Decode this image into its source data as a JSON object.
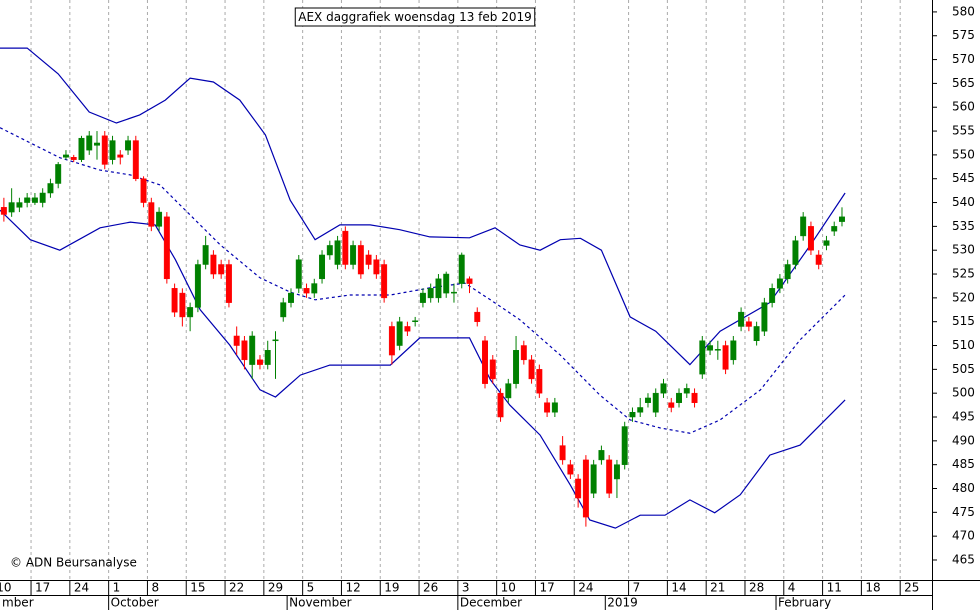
{
  "chart_data": {
    "type": "candlestick",
    "title": "AEX daggrafiek woensdag 13 feb 2019",
    "credit": "© ADN Beursanalyse",
    "up_color": "#008000",
    "down_color": "#ff0000",
    "x": [
      1,
      2,
      3,
      4,
      5,
      6,
      7,
      8,
      9,
      10,
      11,
      12,
      13,
      14,
      15,
      16,
      17,
      18,
      19,
      20,
      21,
      22,
      23,
      24,
      25,
      26,
      27,
      28,
      29,
      30,
      31,
      32,
      33,
      34,
      35,
      36,
      37,
      38,
      39,
      40,
      41,
      42,
      43,
      44,
      45,
      46,
      47,
      48,
      49,
      50,
      51,
      52,
      53,
      54,
      55,
      56,
      57,
      58,
      59,
      60,
      61,
      62,
      63,
      64,
      65,
      66,
      67,
      68,
      69,
      70,
      71,
      72,
      73,
      74,
      75,
      76,
      77,
      78,
      79,
      80,
      81,
      82,
      83,
      84,
      85,
      86,
      87,
      88,
      89,
      90,
      91,
      92,
      93,
      94,
      95,
      96,
      97,
      98,
      99,
      100,
      101,
      102,
      103,
      104,
      105,
      106,
      107,
      108,
      109
    ],
    "open": [
      539,
      538,
      539,
      540,
      540,
      540,
      542,
      544,
      549.5,
      549.5,
      549,
      551,
      552,
      554,
      549,
      550,
      551,
      553,
      545,
      540,
      535,
      537,
      522,
      521,
      516,
      518,
      527,
      529,
      527,
      527,
      512,
      511,
      506,
      507,
      506,
      511,
      516,
      519,
      522,
      522,
      521,
      524,
      529,
      527,
      534,
      527,
      531,
      529,
      528,
      527,
      514,
      510,
      514,
      515,
      519,
      520,
      520,
      521,
      521,
      523,
      524,
      517,
      511,
      507,
      500,
      499,
      502,
      510,
      507,
      505,
      498,
      496,
      489,
      485,
      482,
      486,
      479,
      486,
      486,
      482,
      485,
      495,
      496,
      498,
      496,
      500,
      498,
      498,
      500,
      500,
      504,
      509,
      509,
      510,
      507,
      514,
      515,
      511,
      513,
      519,
      522,
      524,
      527,
      533,
      535,
      529,
      531,
      534,
      536
    ],
    "close": [
      537.5,
      540,
      540,
      541,
      541,
      542,
      544,
      548,
      550,
      549,
      553.5,
      554,
      552.5,
      548,
      553,
      549.5,
      553,
      545,
      540,
      535,
      538,
      524,
      517,
      516,
      518,
      527,
      531,
      525,
      525,
      519,
      510,
      507,
      512,
      506,
      509,
      511.2,
      519,
      521,
      528,
      521,
      523,
      529,
      531,
      532,
      527,
      531,
      525,
      527,
      525,
      520,
      508,
      515,
      513,
      515.2,
      521,
      522,
      524,
      525,
      521.2,
      529,
      523,
      515,
      502,
      503,
      495,
      502,
      509,
      507,
      503,
      500,
      496,
      498,
      486,
      483,
      478,
      474,
      485,
      488,
      479,
      485,
      493,
      496,
      497,
      499,
      500,
      502,
      497,
      500,
      501,
      498,
      511,
      510,
      509.2,
      505,
      511,
      517,
      514,
      514,
      519,
      522,
      524,
      527,
      532,
      537,
      530,
      527,
      532,
      535,
      537
    ],
    "high": [
      541,
      543,
      541,
      542,
      542,
      543,
      545,
      548.5,
      551,
      550,
      554,
      555,
      555,
      555,
      554,
      551,
      554,
      554,
      545.5,
      541,
      539,
      538,
      523,
      522,
      519,
      528,
      533,
      530,
      528,
      528,
      514,
      512,
      513,
      508,
      511,
      513,
      520,
      522,
      529,
      523,
      524,
      530,
      532,
      533,
      535,
      532,
      532,
      530,
      529,
      528,
      515,
      516,
      515,
      516,
      522,
      523,
      525,
      525.5,
      523,
      529.5,
      524.5,
      518,
      512,
      508,
      501,
      503,
      512,
      511,
      508,
      506,
      499,
      499,
      491,
      486,
      483,
      487,
      486,
      489,
      487,
      486,
      494,
      497,
      499,
      500,
      501,
      503,
      499,
      501,
      502,
      501,
      512,
      511,
      511,
      511,
      512,
      518,
      516,
      515,
      520,
      523,
      525,
      528,
      533,
      538,
      536,
      530,
      533,
      536,
      539
    ],
    "low": [
      536,
      537,
      538,
      539,
      539.5,
      539,
      541,
      543,
      549,
      548.5,
      548.5,
      550,
      549,
      547,
      548,
      548,
      550,
      544.5,
      539,
      534,
      534,
      523,
      516,
      514,
      513,
      517,
      526,
      524,
      524,
      518,
      508,
      505,
      503,
      505,
      505,
      503,
      515,
      518,
      521,
      520,
      520,
      523,
      528,
      526,
      526,
      526,
      524,
      526,
      524,
      519,
      506,
      509,
      512,
      514,
      518,
      519,
      519,
      520,
      519,
      522,
      521,
      514,
      501,
      502,
      494,
      498,
      501,
      506,
      502,
      499,
      495,
      495,
      485,
      482,
      476,
      472,
      478,
      485,
      478,
      478,
      484,
      494,
      495,
      497,
      495,
      499,
      496,
      497,
      499,
      497,
      503,
      508,
      507,
      504,
      506,
      513,
      513,
      510,
      512,
      518,
      521,
      523,
      526,
      532,
      529,
      526,
      530,
      533,
      535
    ],
    "bands": [
      {
        "color": "#0000b0",
        "dashed": false,
        "x": [
          0.5,
          4,
          8,
          12,
          15.5,
          18.5,
          21.8,
          25,
          28,
          31.4,
          34.7,
          37.9,
          41.1,
          44.3,
          48.2,
          52,
          55.9,
          61,
          64.3,
          67.5,
          70.1,
          72.7,
          75.3,
          78,
          81.7,
          85,
          89.4,
          93.3,
          99.7,
          104.9,
          109.4
        ],
        "values": [
          572.4,
          572.4,
          567,
          559,
          556.7,
          558.4,
          561.5,
          566.1,
          565.3,
          561.5,
          554.2,
          540.5,
          532.2,
          535.3,
          535.3,
          534.3,
          532.8,
          532.6,
          534.7,
          531.1,
          530,
          532.2,
          532.5,
          530,
          516,
          513,
          506,
          513,
          519,
          531,
          542
        ]
      },
      {
        "color": "#0000b0",
        "dashed": true,
        "x": [
          0.5,
          8.2,
          13.4,
          17.3,
          21.1,
          23.7,
          28.9,
          34,
          37.9,
          41.1,
          45.6,
          50.8,
          55.9,
          60.4,
          63.7,
          67.5,
          72.7,
          77.8,
          81.7,
          85.6,
          89.4,
          93.3,
          98.5,
          103.6,
          109.4
        ],
        "values": [
          555.7,
          549.4,
          546.8,
          545.8,
          543.7,
          539.5,
          531.1,
          524.2,
          521.2,
          519.6,
          520.6,
          520.6,
          522.1,
          523.1,
          519.6,
          515.4,
          508,
          499.6,
          494.4,
          492.7,
          491.6,
          494.4,
          500.7,
          511.2,
          520.6
        ]
      },
      {
        "color": "#0000b0",
        "dashed": false,
        "x": [
          0.5,
          4.4,
          8.2,
          13.4,
          17.3,
          20.5,
          23.1,
          26.3,
          30.1,
          34,
          36,
          39.2,
          43,
          50.8,
          54.6,
          61,
          63.7,
          66.2,
          70.1,
          74,
          76.5,
          79.8,
          83,
          86.2,
          89.4,
          92.6,
          95.9,
          99.7,
          103.6,
          109.4
        ],
        "values": [
          538.4,
          532.2,
          530,
          534.7,
          535.9,
          535.3,
          528,
          517.5,
          510.1,
          500.7,
          499.2,
          503.8,
          505.9,
          505.9,
          511.6,
          511.6,
          502.8,
          497.5,
          491.2,
          480.7,
          473.4,
          471.7,
          474.4,
          474.4,
          477.6,
          474.9,
          478.7,
          487,
          489.1,
          498.6
        ]
      }
    ],
    "xlim": [
      0.5,
      120.6
    ],
    "xticks": [
      {
        "value": 0,
        "label": "10"
      },
      {
        "value": 5,
        "label": "17"
      },
      {
        "value": 10,
        "label": "24"
      },
      {
        "value": 15,
        "label": "1"
      },
      {
        "value": 20,
        "label": "8"
      },
      {
        "value": 25,
        "label": "15"
      },
      {
        "value": 30,
        "label": "22"
      },
      {
        "value": 35,
        "label": "29"
      },
      {
        "value": 40,
        "label": "5"
      },
      {
        "value": 45,
        "label": "12"
      },
      {
        "value": 50,
        "label": "19"
      },
      {
        "value": 55,
        "label": "26"
      },
      {
        "value": 60,
        "label": "3"
      },
      {
        "value": 65,
        "label": "10"
      },
      {
        "value": 70,
        "label": "17"
      },
      {
        "value": 75,
        "label": "24"
      },
      {
        "value": 82,
        "label": "7"
      },
      {
        "value": 87,
        "label": "14"
      },
      {
        "value": 92,
        "label": "21"
      },
      {
        "value": 97,
        "label": "28"
      },
      {
        "value": 102,
        "label": "4"
      },
      {
        "value": 107,
        "label": "11"
      },
      {
        "value": 112,
        "label": "18"
      },
      {
        "value": 117,
        "label": "25"
      }
    ],
    "months": [
      {
        "value": -5,
        "label": "mber"
      },
      {
        "value": 15,
        "label": "October"
      },
      {
        "value": 38,
        "label": "November"
      },
      {
        "value": 60,
        "label": "December"
      },
      {
        "value": 79,
        "label": "2019"
      },
      {
        "value": 101,
        "label": "February"
      }
    ],
    "ylim": [
      460.8,
      582.5
    ],
    "yticks": [
      465,
      470,
      475,
      480,
      485,
      490,
      495,
      500,
      505,
      510,
      515,
      520,
      525,
      530,
      535,
      540,
      545,
      550,
      555,
      560,
      565,
      570,
      575,
      580
    ]
  }
}
